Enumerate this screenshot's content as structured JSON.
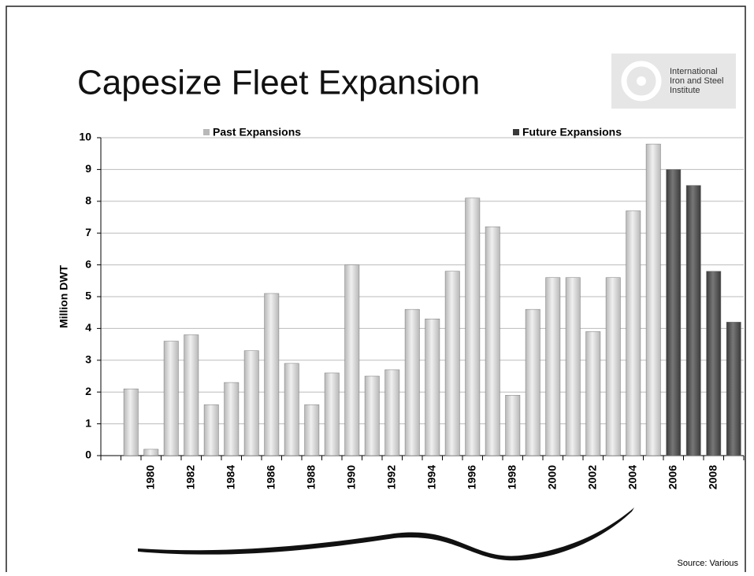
{
  "chart_data": {
    "type": "bar",
    "title": "Capesize Fleet Expansion",
    "logo_text": "International Iron and Steel Institute",
    "y_label": "Million DWT",
    "source": "Source: Various",
    "categories": [
      null,
      null,
      "1980",
      null,
      "1982",
      null,
      "1984",
      null,
      "1986",
      null,
      "1988",
      null,
      "1990",
      null,
      "1992",
      null,
      "1994",
      null,
      "1996",
      null,
      "1998",
      null,
      "2000",
      null,
      "2002",
      null,
      "2004",
      null,
      "2006",
      null,
      "2008",
      null
    ],
    "series": [
      {
        "name": "Past Expansions",
        "color": "#b8b8b8",
        "values": [
          null,
          2.1,
          0.2,
          3.6,
          3.8,
          1.6,
          2.3,
          3.3,
          5.1,
          2.9,
          1.6,
          2.6,
          6.0,
          2.5,
          2.7,
          4.6,
          4.3,
          5.8,
          8.1,
          7.2,
          1.9,
          4.6,
          5.6,
          5.6,
          3.9,
          5.6,
          7.7,
          9.8,
          null,
          null,
          null,
          null
        ]
      },
      {
        "name": "Future Expansions",
        "color": "#3a3a3a",
        "values": [
          null,
          null,
          null,
          null,
          null,
          null,
          null,
          null,
          null,
          null,
          null,
          null,
          null,
          null,
          null,
          null,
          null,
          null,
          null,
          null,
          null,
          null,
          null,
          null,
          null,
          null,
          null,
          null,
          9.0,
          8.5,
          5.8,
          4.2
        ]
      }
    ],
    "ylim": [
      0,
      10
    ],
    "yticks": [
      0,
      1,
      2,
      3,
      4,
      5,
      6,
      7,
      8,
      9,
      10
    ],
    "grid": true,
    "legend": "top"
  }
}
